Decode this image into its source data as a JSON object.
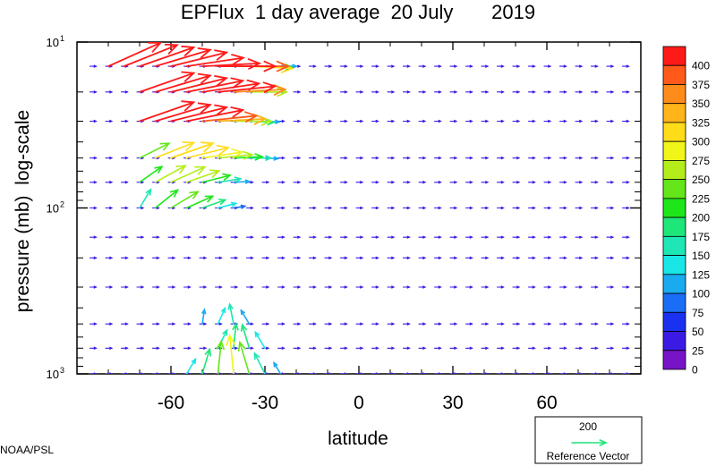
{
  "chart_data": {
    "type": "vector",
    "title": "EPFlux  1 day average  20 July       2019",
    "xlabel": "latitude",
    "ylabel": "pressure (mb)  log-scale",
    "x_range": [
      -90,
      90
    ],
    "x_ticks": [
      -60,
      -30,
      0,
      30,
      60
    ],
    "x_tick_labels": [
      "-60",
      "-30",
      "0",
      "30",
      "60"
    ],
    "y_scale": "log",
    "y_range": [
      1000,
      10
    ],
    "y_ticks": [
      {
        "base": "10",
        "exp": "1",
        "value": 10
      },
      {
        "base": "10",
        "exp": "2",
        "value": 100
      },
      {
        "base": "10",
        "exp": "3",
        "value": 1000
      }
    ],
    "colorbar": {
      "labels": [
        "400",
        "375",
        "350",
        "325",
        "300",
        "275",
        "250",
        "225",
        "200",
        "175",
        "150",
        "125",
        "100",
        "75",
        "50",
        "25",
        "0"
      ],
      "colors": [
        "#ff1a1a",
        "#ff5a1a",
        "#ff8c1a",
        "#ffb41a",
        "#ffdc1a",
        "#f0f51a",
        "#b4ee1a",
        "#64e61a",
        "#1ee61a",
        "#1ee678",
        "#1ee6b4",
        "#1ae6e6",
        "#1aaaf0",
        "#1a6ef5",
        "#1a32f0",
        "#3c1ae6",
        "#7814c8"
      ]
    },
    "reference_vector": {
      "value": "200",
      "label": "Reference Vector",
      "color": "#1ee678"
    },
    "vectors": [
      {
        "lat": -80,
        "p": 14,
        "u": 1.0,
        "v": 0.45,
        "mag": 400
      },
      {
        "lat": -75,
        "p": 14,
        "u": 1.0,
        "v": 0.4,
        "mag": 400
      },
      {
        "lat": -70,
        "p": 14,
        "u": 1.0,
        "v": 0.35,
        "mag": 400
      },
      {
        "lat": -65,
        "p": 14,
        "u": 1.0,
        "v": 0.3,
        "mag": 400
      },
      {
        "lat": -60,
        "p": 14,
        "u": 1.0,
        "v": 0.25,
        "mag": 400
      },
      {
        "lat": -55,
        "p": 14,
        "u": 1.0,
        "v": 0.15,
        "mag": 400
      },
      {
        "lat": -50,
        "p": 14,
        "u": 1.0,
        "v": 0.05,
        "mag": 400
      },
      {
        "lat": -45,
        "p": 14,
        "u": 1.0,
        "v": 0.0,
        "mag": 400
      },
      {
        "lat": -40,
        "p": 14,
        "u": 1.0,
        "v": 0.0,
        "mag": 380
      },
      {
        "lat": -35,
        "p": 14,
        "u": 1.0,
        "v": -0.05,
        "mag": 300
      },
      {
        "lat": -30,
        "p": 14,
        "u": 1.0,
        "v": -0.05,
        "mag": 190
      },
      {
        "lat": -25,
        "p": 14,
        "u": 1.0,
        "v": 0.0,
        "mag": 110
      },
      {
        "lat": -70,
        "p": 20,
        "u": 1.0,
        "v": 0.35,
        "mag": 400
      },
      {
        "lat": -65,
        "p": 20,
        "u": 1.0,
        "v": 0.3,
        "mag": 400
      },
      {
        "lat": -60,
        "p": 20,
        "u": 1.0,
        "v": 0.25,
        "mag": 400
      },
      {
        "lat": -55,
        "p": 20,
        "u": 1.0,
        "v": 0.2,
        "mag": 400
      },
      {
        "lat": -50,
        "p": 20,
        "u": 1.0,
        "v": 0.15,
        "mag": 400
      },
      {
        "lat": -45,
        "p": 20,
        "u": 1.0,
        "v": 0.1,
        "mag": 400
      },
      {
        "lat": -40,
        "p": 20,
        "u": 1.0,
        "v": 0.05,
        "mag": 360
      },
      {
        "lat": -35,
        "p": 20,
        "u": 1.0,
        "v": 0.0,
        "mag": 260
      },
      {
        "lat": -30,
        "p": 20,
        "u": 1.0,
        "v": 0.0,
        "mag": 150
      },
      {
        "lat": -70,
        "p": 30,
        "u": 1.0,
        "v": 0.35,
        "mag": 400
      },
      {
        "lat": -65,
        "p": 30,
        "u": 1.0,
        "v": 0.3,
        "mag": 400
      },
      {
        "lat": -60,
        "p": 30,
        "u": 1.0,
        "v": 0.25,
        "mag": 400
      },
      {
        "lat": -55,
        "p": 30,
        "u": 1.0,
        "v": 0.2,
        "mag": 400
      },
      {
        "lat": -50,
        "p": 30,
        "u": 1.0,
        "v": 0.1,
        "mag": 380
      },
      {
        "lat": -45,
        "p": 30,
        "u": 1.0,
        "v": 0.05,
        "mag": 330
      },
      {
        "lat": -40,
        "p": 30,
        "u": 1.0,
        "v": 0.0,
        "mag": 260
      },
      {
        "lat": -35,
        "p": 30,
        "u": 1.0,
        "v": -0.05,
        "mag": 170
      },
      {
        "lat": -30,
        "p": 30,
        "u": 1.0,
        "v": -0.05,
        "mag": 100
      },
      {
        "lat": -70,
        "p": 50,
        "u": 1.0,
        "v": 0.5,
        "mag": 230
      },
      {
        "lat": -65,
        "p": 50,
        "u": 1.0,
        "v": 0.4,
        "mag": 290
      },
      {
        "lat": -60,
        "p": 50,
        "u": 1.0,
        "v": 0.35,
        "mag": 310
      },
      {
        "lat": -55,
        "p": 50,
        "u": 1.0,
        "v": 0.25,
        "mag": 300
      },
      {
        "lat": -50,
        "p": 50,
        "u": 1.0,
        "v": 0.15,
        "mag": 280
      },
      {
        "lat": -45,
        "p": 50,
        "u": 1.0,
        "v": 0.1,
        "mag": 240
      },
      {
        "lat": -40,
        "p": 50,
        "u": 1.0,
        "v": 0.05,
        "mag": 200
      },
      {
        "lat": -35,
        "p": 50,
        "u": 1.0,
        "v": 0.0,
        "mag": 150
      },
      {
        "lat": -30,
        "p": 50,
        "u": 1.0,
        "v": -0.05,
        "mag": 90
      },
      {
        "lat": -70,
        "p": 70,
        "u": 1.0,
        "v": 0.7,
        "mag": 190
      },
      {
        "lat": -65,
        "p": 70,
        "u": 1.0,
        "v": 0.55,
        "mag": 240
      },
      {
        "lat": -60,
        "p": 70,
        "u": 1.0,
        "v": 0.45,
        "mag": 260
      },
      {
        "lat": -55,
        "p": 70,
        "u": 1.0,
        "v": 0.35,
        "mag": 240
      },
      {
        "lat": -50,
        "p": 70,
        "u": 1.0,
        "v": 0.25,
        "mag": 200
      },
      {
        "lat": -45,
        "p": 70,
        "u": 1.0,
        "v": 0.15,
        "mag": 160
      },
      {
        "lat": -40,
        "p": 70,
        "u": 1.0,
        "v": 0.05,
        "mag": 110
      },
      {
        "lat": -70,
        "p": 100,
        "u": 0.6,
        "v": 1.0,
        "mag": 150
      },
      {
        "lat": -65,
        "p": 100,
        "u": 1.0,
        "v": 0.8,
        "mag": 200
      },
      {
        "lat": -60,
        "p": 100,
        "u": 1.0,
        "v": 0.6,
        "mag": 220
      },
      {
        "lat": -55,
        "p": 100,
        "u": 1.0,
        "v": 0.45,
        "mag": 200
      },
      {
        "lat": -50,
        "p": 100,
        "u": 1.0,
        "v": 0.35,
        "mag": 170
      },
      {
        "lat": -45,
        "p": 100,
        "u": 1.0,
        "v": 0.25,
        "mag": 130
      },
      {
        "lat": -40,
        "p": 100,
        "u": 1.0,
        "v": 0.15,
        "mag": 80
      },
      {
        "lat": -50,
        "p": 500,
        "u": 0.15,
        "v": 1.0,
        "mag": 100
      },
      {
        "lat": -45,
        "p": 500,
        "u": 0.45,
        "v": 1.0,
        "mag": 120
      },
      {
        "lat": -40,
        "p": 500,
        "u": -0.2,
        "v": 1.0,
        "mag": 140
      },
      {
        "lat": -35,
        "p": 500,
        "u": -0.6,
        "v": 1.0,
        "mag": 110
      },
      {
        "lat": -45,
        "p": 700,
        "u": 0.5,
        "v": 1.0,
        "mag": 140
      },
      {
        "lat": -40,
        "p": 700,
        "u": 0.1,
        "v": 1.0,
        "mag": 170
      },
      {
        "lat": -35,
        "p": 700,
        "u": -0.3,
        "v": 1.0,
        "mag": 170
      },
      {
        "lat": -30,
        "p": 700,
        "u": -0.6,
        "v": 1.0,
        "mag": 130
      },
      {
        "lat": -55,
        "p": 1000,
        "u": 0.6,
        "v": 1.0,
        "mag": 120
      },
      {
        "lat": -50,
        "p": 1000,
        "u": 0.3,
        "v": 1.0,
        "mag": 180
      },
      {
        "lat": -45,
        "p": 1000,
        "u": 0.1,
        "v": 1.0,
        "mag": 230
      },
      {
        "lat": -40,
        "p": 1000,
        "u": -0.1,
        "v": 1.0,
        "mag": 270
      },
      {
        "lat": -35,
        "p": 1000,
        "u": -0.3,
        "v": 1.0,
        "mag": 230
      },
      {
        "lat": -30,
        "p": 1000,
        "u": -0.5,
        "v": 1.0,
        "mag": 160
      },
      {
        "lat": -25,
        "p": 1000,
        "u": -0.6,
        "v": 1.0,
        "mag": 90
      }
    ],
    "background_vectors": {
      "grid_lat": [
        -85,
        -80,
        -75,
        -70,
        -65,
        -60,
        -55,
        -50,
        -45,
        -40,
        -35,
        -30,
        -25,
        -20,
        -15,
        -10,
        -5,
        0,
        5,
        10,
        15,
        20,
        25,
        30,
        35,
        40,
        45,
        50,
        55,
        60,
        65,
        70,
        75,
        80,
        85
      ],
      "grid_p": [
        14,
        20,
        30,
        50,
        70,
        100,
        150,
        200,
        300,
        500,
        700,
        1000
      ],
      "mag": 15
    }
  },
  "footer": {
    "credit": "NOAA/PSL"
  }
}
